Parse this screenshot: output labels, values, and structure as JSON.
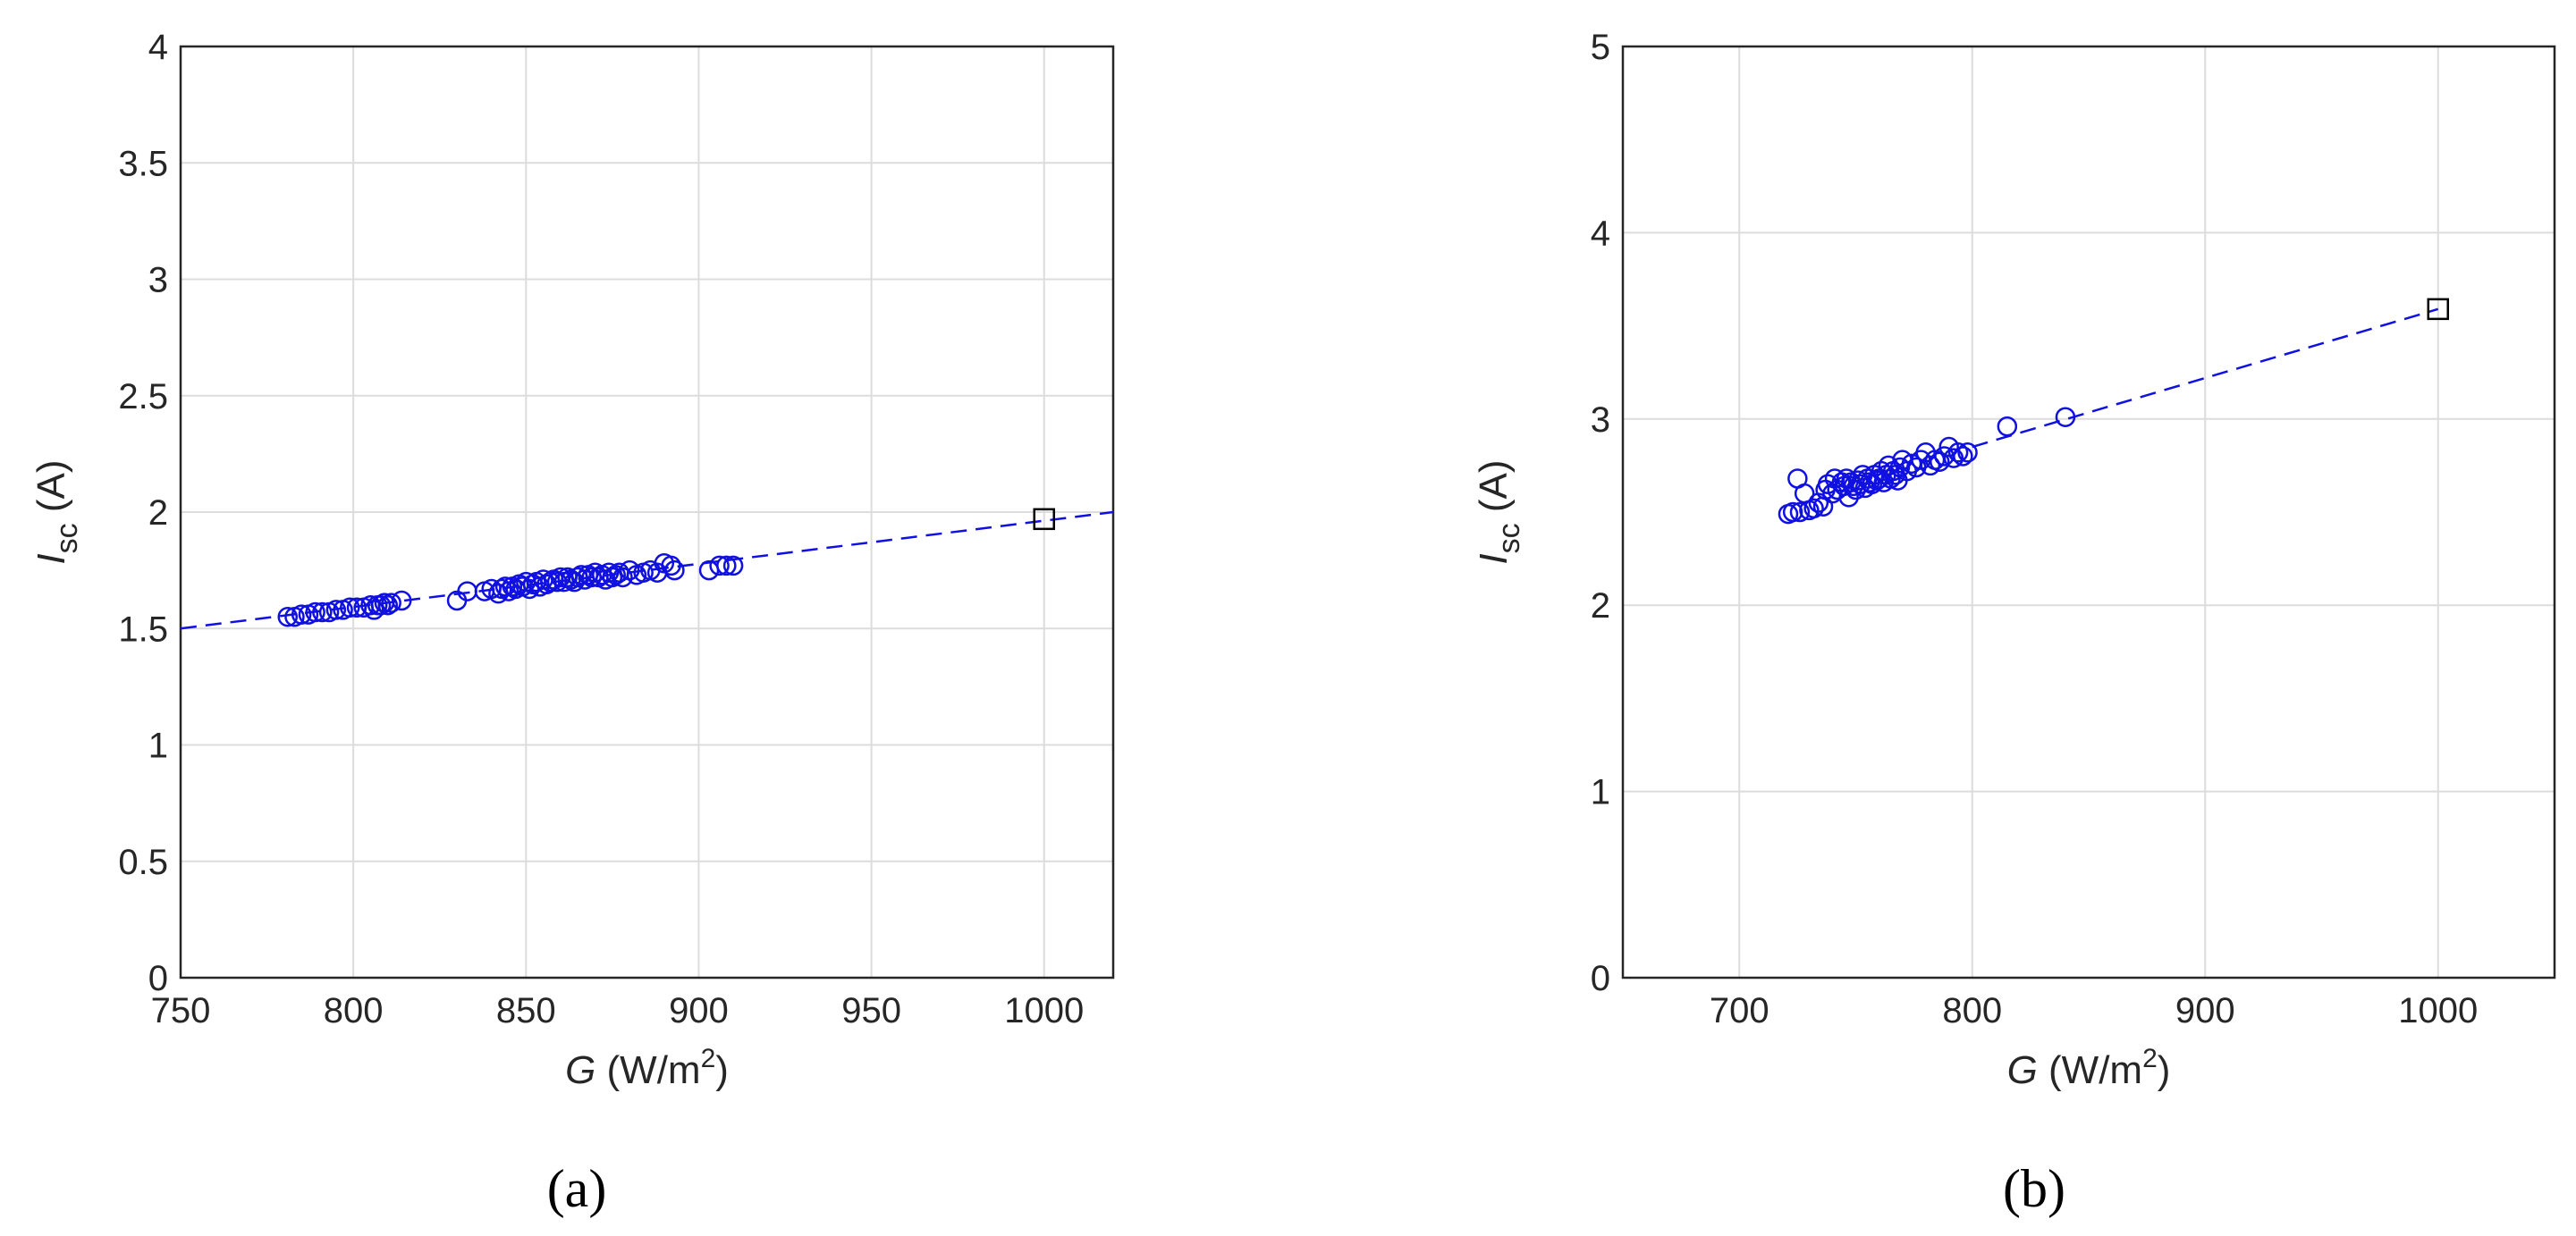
{
  "colors": {
    "series": "#1010e0",
    "reference": "#000000",
    "axis": "#262626",
    "grid": "#dcdcdc"
  },
  "chart_data": [
    {
      "type": "scatter",
      "panel_label": "(a)",
      "xlabel": {
        "var": "G",
        "unit_pre": " (W/m",
        "sup": "2",
        "unit_post": ")"
      },
      "ylabel": {
        "var": "I",
        "sub": "sc",
        "unit": " (A)"
      },
      "xlim": [
        750,
        1020
      ],
      "ylim": [
        0,
        4
      ],
      "xticks": [
        "750",
        "800",
        "850",
        "900",
        "950",
        "1000"
      ],
      "yticks": [
        "0",
        "0.5",
        "1",
        "1.5",
        "2",
        "2.5",
        "3",
        "3.5",
        "4"
      ],
      "grid": true,
      "series": [
        {
          "marker": "circle",
          "x": [
            781,
            783,
            785,
            787,
            789,
            791,
            793,
            795,
            797,
            799,
            801,
            803,
            805,
            806,
            807,
            808,
            809,
            810,
            811,
            814,
            830,
            833,
            838,
            840,
            842,
            843,
            844,
            845,
            846,
            847,
            848,
            849,
            850,
            851,
            852,
            853,
            854,
            855,
            856,
            857,
            858,
            859,
            860,
            861,
            862,
            863,
            864,
            865,
            866,
            867,
            868,
            869,
            870,
            871,
            872,
            873,
            874,
            875,
            876,
            877,
            878,
            880,
            882,
            884,
            886,
            888,
            890,
            892,
            893,
            903,
            906,
            908,
            910
          ],
          "y": [
            1.55,
            1.55,
            1.56,
            1.56,
            1.57,
            1.57,
            1.57,
            1.58,
            1.58,
            1.59,
            1.59,
            1.59,
            1.6,
            1.58,
            1.6,
            1.6,
            1.61,
            1.6,
            1.61,
            1.62,
            1.62,
            1.66,
            1.66,
            1.67,
            1.65,
            1.67,
            1.68,
            1.66,
            1.68,
            1.67,
            1.69,
            1.68,
            1.7,
            1.67,
            1.69,
            1.7,
            1.68,
            1.71,
            1.69,
            1.7,
            1.71,
            1.7,
            1.72,
            1.7,
            1.72,
            1.71,
            1.7,
            1.72,
            1.73,
            1.71,
            1.73,
            1.72,
            1.74,
            1.72,
            1.73,
            1.71,
            1.74,
            1.72,
            1.73,
            1.74,
            1.72,
            1.75,
            1.73,
            1.74,
            1.75,
            1.74,
            1.78,
            1.77,
            1.75,
            1.75,
            1.77,
            1.77,
            1.77
          ]
        },
        {
          "marker": "dashed-line",
          "x": [
            750,
            1020
          ],
          "y": [
            1.5,
            2.0
          ]
        },
        {
          "marker": "square",
          "x": [
            1000
          ],
          "y": [
            1.97
          ]
        }
      ]
    },
    {
      "type": "scatter",
      "panel_label": "(b)",
      "xlabel": {
        "var": "G",
        "unit_pre": " (W/m",
        "sup": "2",
        "unit_post": ")"
      },
      "ylabel": {
        "var": "I",
        "sub": "sc",
        "unit": " (A)"
      },
      "xlim": [
        650,
        1050
      ],
      "ylim": [
        0,
        5
      ],
      "xticks": [
        "700",
        "800",
        "900",
        "1000"
      ],
      "yticks": [
        "0",
        "1",
        "2",
        "3",
        "4",
        "5"
      ],
      "grid": true,
      "series": [
        {
          "marker": "circle",
          "x": [
            721,
            723,
            725,
            726,
            728,
            730,
            732,
            734,
            736,
            737,
            738,
            740,
            741,
            742,
            744,
            745,
            746,
            747,
            748,
            749,
            750,
            751,
            752,
            753,
            754,
            755,
            756,
            757,
            758,
            759,
            760,
            761,
            762,
            763,
            764,
            765,
            766,
            767,
            768,
            769,
            770,
            772,
            774,
            776,
            778,
            780,
            782,
            784,
            786,
            788,
            790,
            792,
            794,
            796,
            798,
            815,
            840
          ],
          "y": [
            2.49,
            2.5,
            2.68,
            2.5,
            2.6,
            2.51,
            2.52,
            2.55,
            2.53,
            2.62,
            2.65,
            2.6,
            2.68,
            2.62,
            2.66,
            2.64,
            2.68,
            2.58,
            2.66,
            2.64,
            2.62,
            2.67,
            2.65,
            2.7,
            2.63,
            2.68,
            2.66,
            2.65,
            2.7,
            2.67,
            2.68,
            2.72,
            2.66,
            2.7,
            2.75,
            2.68,
            2.72,
            2.7,
            2.67,
            2.74,
            2.78,
            2.72,
            2.76,
            2.74,
            2.78,
            2.82,
            2.75,
            2.78,
            2.77,
            2.8,
            2.85,
            2.79,
            2.82,
            2.8,
            2.82,
            2.96,
            3.01
          ]
        },
        {
          "marker": "dashed-line",
          "x": [
            800,
            1000
          ],
          "y": [
            2.85,
            3.59
          ]
        },
        {
          "marker": "square",
          "x": [
            1000
          ],
          "y": [
            3.59
          ]
        }
      ]
    }
  ]
}
